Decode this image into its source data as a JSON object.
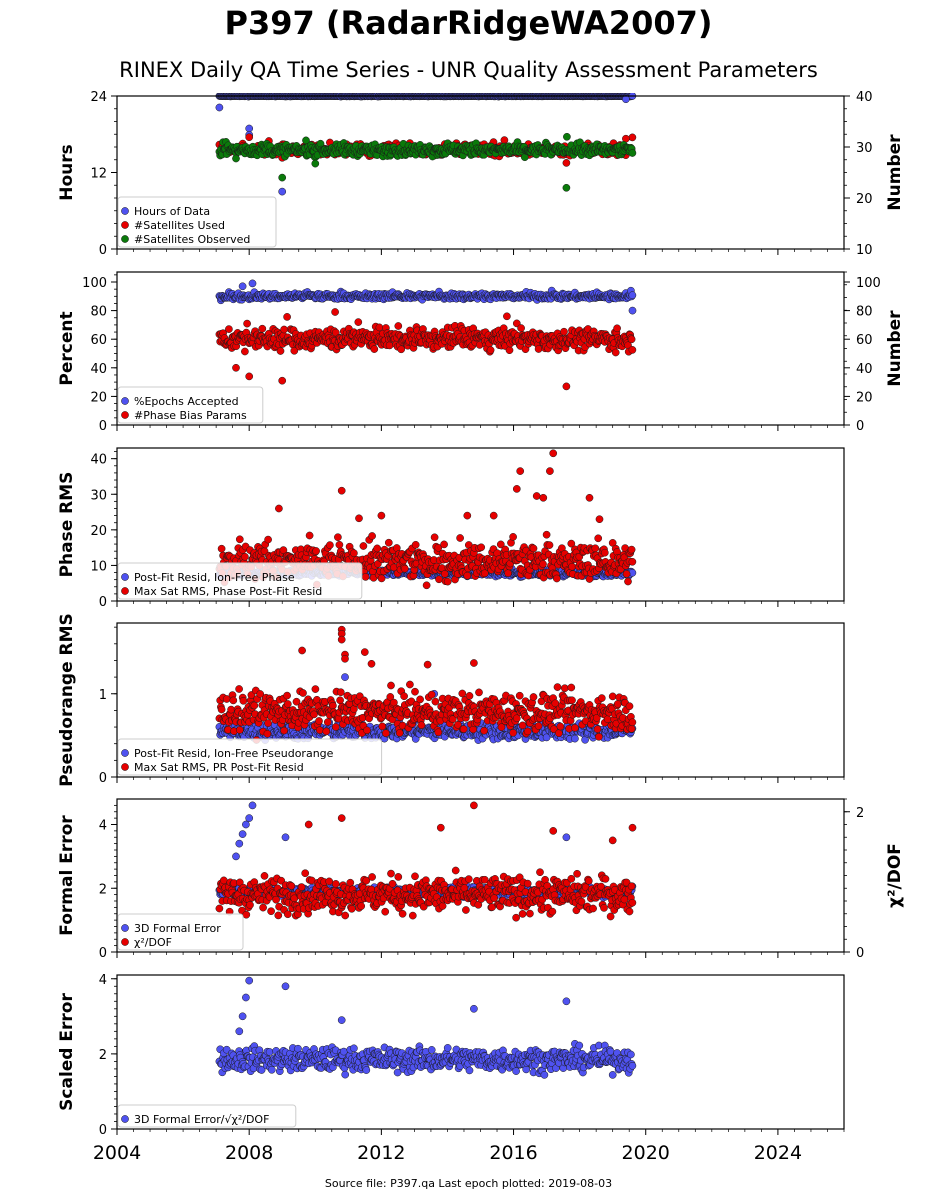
{
  "title": "P397 (RadarRidgeWA2007)",
  "subtitle": "RINEX Daily QA Time Series - UNR Quality Assessment Parameters",
  "footer": "Source file: P397.qa Last epoch plotted: 2019-08-03",
  "colors": {
    "blue": "#4f52f0",
    "red": "#e60000",
    "green": "#0a7a0a",
    "edge": "#1a1a1a"
  },
  "chart_data": {
    "type": "scatter",
    "x_ticks": [
      "2004",
      "2008",
      "2012",
      "2016",
      "2020",
      "2024"
    ],
    "xlim": [
      2004,
      2026
    ],
    "panels": [
      {
        "id": "hours",
        "ylabel": "Hours",
        "ylim": [
          0,
          24
        ],
        "yticks": [
          "0",
          "12",
          "24"
        ],
        "y2label": "Number",
        "y2lim": [
          10,
          40
        ],
        "y2ticks": [
          "10",
          "20",
          "30",
          "40"
        ],
        "legend": [
          "Hours of Data",
          "#Satellites Used",
          "#Satellites Observed"
        ],
        "series": [
          {
            "name": "Hours of Data",
            "color": "blue",
            "axis": "left",
            "start": 2007.1,
            "end": 2019.6,
            "base": 24,
            "noise": 0.05,
            "outliers": [
              [
                2007.1,
                22.2
              ],
              [
                2008.0,
                18.9
              ],
              [
                2008.0,
                17.9
              ],
              [
                2009.0,
                9.0
              ],
              [
                2019.4,
                23.5
              ]
            ]
          },
          {
            "name": "#Satellites Used",
            "color": "red",
            "axis": "left",
            "start": 2007.1,
            "end": 2019.6,
            "base": 15.5,
            "noise": 0.6,
            "outliers": [
              [
                2009.0,
                14.3
              ],
              [
                2009.6,
                15.8
              ],
              [
                2017.6,
                13.5
              ],
              [
                2019.4,
                17.3
              ]
            ]
          },
          {
            "name": "#Satellites Observed",
            "color": "green",
            "axis": "left",
            "start": 2007.1,
            "end": 2019.6,
            "base": 15.5,
            "noise": 0.6,
            "outliers": [
              [
                2009.0,
                11.2
              ],
              [
                2017.6,
                9.6
              ],
              [
                2007.6,
                14.2
              ],
              [
                2010.0,
                13.4
              ]
            ]
          }
        ]
      },
      {
        "id": "percent",
        "ylabel": "Percent",
        "ylim": [
          0,
          107
        ],
        "yticks": [
          "0",
          "20",
          "40",
          "60",
          "80",
          "100"
        ],
        "y2label": "Number",
        "y2ticks": [
          "0",
          "20",
          "40",
          "60",
          "80",
          "100"
        ],
        "legend": [
          "%Epochs Accepted",
          "#Phase Bias Params"
        ],
        "series": [
          {
            "name": "%Epochs Accepted",
            "color": "blue",
            "axis": "left",
            "start": 2007.1,
            "end": 2019.6,
            "base": 90,
            "noise": 1.5,
            "outliers": [
              [
                2007.8,
                97
              ],
              [
                2008.1,
                99
              ],
              [
                2019.6,
                80
              ]
            ]
          },
          {
            "name": "#Phase Bias Params",
            "color": "red",
            "axis": "left",
            "start": 2007.1,
            "end": 2019.6,
            "base": 60,
            "noise": 5,
            "outliers": [
              [
                2007.6,
                40
              ],
              [
                2008.0,
                34
              ],
              [
                2009.0,
                31
              ],
              [
                2017.6,
                27
              ],
              [
                2010.6,
                79
              ],
              [
                2015.8,
                76
              ]
            ]
          }
        ]
      },
      {
        "id": "phase",
        "ylabel": "Phase RMS",
        "ylim": [
          0,
          43
        ],
        "yticks": [
          "0",
          "10",
          "20",
          "30",
          "40"
        ],
        "legend": [
          "Post-Fit Resid, Ion-Free Phase",
          "Max Sat RMS, Phase Post-Fit Resid"
        ],
        "series": [
          {
            "name": "Post-Fit Resid, Ion-Free Phase",
            "color": "blue",
            "axis": "left",
            "start": 2007.1,
            "end": 2019.6,
            "base": 7.8,
            "noise": 0.6,
            "outliers": []
          },
          {
            "name": "Max Sat RMS, Phase Post-Fit Resid",
            "color": "red",
            "axis": "left",
            "start": 2007.1,
            "end": 2019.6,
            "base": 11,
            "noise": 3.5,
            "outliers": [
              [
                2010.8,
                31
              ],
              [
                2016.1,
                31.5
              ],
              [
                2016.2,
                36.5
              ],
              [
                2016.7,
                29.5
              ],
              [
                2016.9,
                29
              ],
              [
                2017.1,
                36.5
              ],
              [
                2017.2,
                41.5
              ],
              [
                2018.3,
                29
              ],
              [
                2014.6,
                24
              ],
              [
                2015.4,
                24
              ],
              [
                2012.0,
                24
              ],
              [
                2008.9,
                26
              ],
              [
                2018.6,
                23
              ]
            ]
          }
        ]
      },
      {
        "id": "pseudo",
        "ylabel": "Pseudorange RMS",
        "ylim": [
          0,
          1.85
        ],
        "yticks": [
          "0",
          "1"
        ],
        "legend": [
          "Post-Fit Resid, Ion-Free Pseudorange",
          "Max Sat RMS, PR Post-Fit Resid"
        ],
        "series": [
          {
            "name": "Post-Fit Resid, Ion-Free Pseudorange",
            "color": "blue",
            "axis": "left",
            "start": 2007.1,
            "end": 2019.6,
            "base": 0.55,
            "noise": 0.07,
            "outliers": [
              [
                2010.9,
                1.2
              ],
              [
                2013.6,
                1.0
              ]
            ]
          },
          {
            "name": "Max Sat RMS, PR Post-Fit Resid",
            "color": "red",
            "axis": "left",
            "start": 2007.1,
            "end": 2019.6,
            "base": 0.78,
            "noise": 0.16,
            "outliers": [
              [
                2009.6,
                1.52
              ],
              [
                2010.8,
                1.77
              ],
              [
                2010.8,
                1.72
              ],
              [
                2010.8,
                1.65
              ],
              [
                2010.9,
                1.47
              ],
              [
                2010.9,
                1.42
              ],
              [
                2011.5,
                1.5
              ],
              [
                2014.8,
                1.37
              ],
              [
                2011.7,
                1.36
              ],
              [
                2013.4,
                1.35
              ]
            ]
          }
        ]
      },
      {
        "id": "formal",
        "ylabel": "Formal Error",
        "ylim": [
          0,
          4.8
        ],
        "yticks": [
          "0",
          "2",
          "4"
        ],
        "y2label": "χ²/DOF",
        "y2ticks": [
          "0",
          "2"
        ],
        "legend": [
          "3D Formal Error",
          "χ²/DOF"
        ],
        "series": [
          {
            "name": "3D Formal Error",
            "color": "blue",
            "axis": "left",
            "start": 2007.1,
            "end": 2019.6,
            "base": 1.9,
            "noise": 0.1,
            "outliers": [
              [
                2007.6,
                3.0
              ],
              [
                2007.7,
                3.4
              ],
              [
                2007.8,
                3.7
              ],
              [
                2007.9,
                4.0
              ],
              [
                2008.0,
                4.2
              ],
              [
                2008.1,
                4.6
              ],
              [
                2009.1,
                3.6
              ],
              [
                2017.6,
                3.6
              ]
            ]
          },
          {
            "name": "χ²/DOF",
            "color": "red",
            "axis": "left",
            "start": 2007.1,
            "end": 2019.6,
            "base": 1.8,
            "noise": 0.4,
            "outliers": [
              [
                2009.8,
                4.0
              ],
              [
                2010.8,
                4.2
              ],
              [
                2013.8,
                3.9
              ],
              [
                2014.8,
                4.6
              ],
              [
                2019.6,
                3.9
              ],
              [
                2017.2,
                3.8
              ],
              [
                2019.0,
                3.5
              ]
            ]
          }
        ]
      },
      {
        "id": "scaled",
        "ylabel": "Scaled Error",
        "ylim": [
          0,
          4.1
        ],
        "yticks": [
          "0",
          "2",
          "4"
        ],
        "legend": [
          "3D Formal Error/√χ²/DOF"
        ],
        "series": [
          {
            "name": "3D Formal Error/√χ²/DOF",
            "color": "blue",
            "axis": "left",
            "start": 2007.1,
            "end": 2019.6,
            "base": 1.85,
            "noise": 0.22,
            "outliers": [
              [
                2007.7,
                2.6
              ],
              [
                2007.8,
                3.0
              ],
              [
                2007.9,
                3.5
              ],
              [
                2008.0,
                3.95
              ],
              [
                2009.1,
                3.8
              ],
              [
                2014.8,
                3.2
              ],
              [
                2017.6,
                3.4
              ],
              [
                2010.8,
                2.9
              ]
            ]
          }
        ]
      }
    ]
  }
}
